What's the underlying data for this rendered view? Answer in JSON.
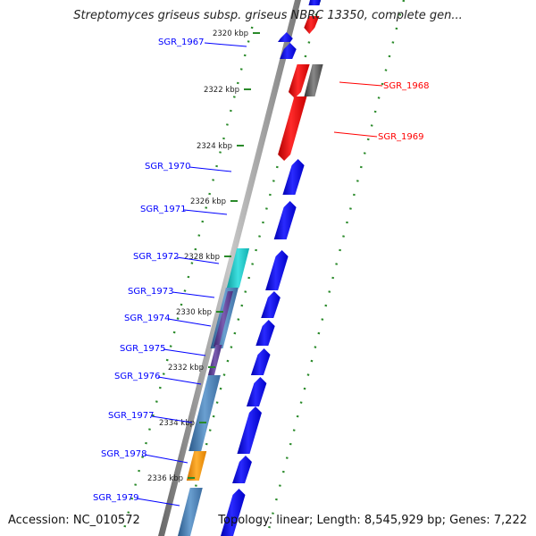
{
  "title": "Streptomyces griseus subsp. griseus NBRC 13350, complete gen...",
  "footer": {
    "accession": "Accession: NC_010572",
    "summary": "Topology: linear; Length: 8,545,929 bp; Genes: 7,222"
  },
  "ticks": [
    "2320 kbp",
    "2322 kbp",
    "2324 kbp",
    "2326 kbp",
    "2328 kbp",
    "2330 kbp",
    "2332 kbp",
    "2334 kbp",
    "2336 kbp"
  ],
  "genes": [
    {
      "label": "SGR_1967",
      "color": "#0000ff"
    },
    {
      "label": "SGR_1968",
      "color": "#ff0000"
    },
    {
      "label": "SGR_1969",
      "color": "#ff0000"
    },
    {
      "label": "SGR_1970",
      "color": "#0000ff"
    },
    {
      "label": "SGR_1971",
      "color": "#0000ff"
    },
    {
      "label": "SGR_1972",
      "color": "#0000ff"
    },
    {
      "label": "SGR_1973",
      "color": "#0000ff"
    },
    {
      "label": "SGR_1974",
      "color": "#0000ff"
    },
    {
      "label": "SGR_1975",
      "color": "#0000ff"
    },
    {
      "label": "SGR_1976",
      "color": "#0000ff"
    },
    {
      "label": "SGR_1977",
      "color": "#0000ff"
    },
    {
      "label": "SGR_1978",
      "color": "#0000ff"
    },
    {
      "label": "SGR_1979",
      "color": "#0000ff"
    }
  ],
  "colors": {
    "forward_gene": "#0000ff",
    "reverse_gene": "#ff0000",
    "other_feature": "#555555",
    "cyan_feature": "#20c8c8",
    "steel_feature": "#4a7fb5",
    "purple_feature": "#5a3c8c",
    "orange_feature": "#ff9900",
    "backbone": "#888888",
    "tick_dots": "#2a8a2a",
    "axis_label": "#222222"
  }
}
